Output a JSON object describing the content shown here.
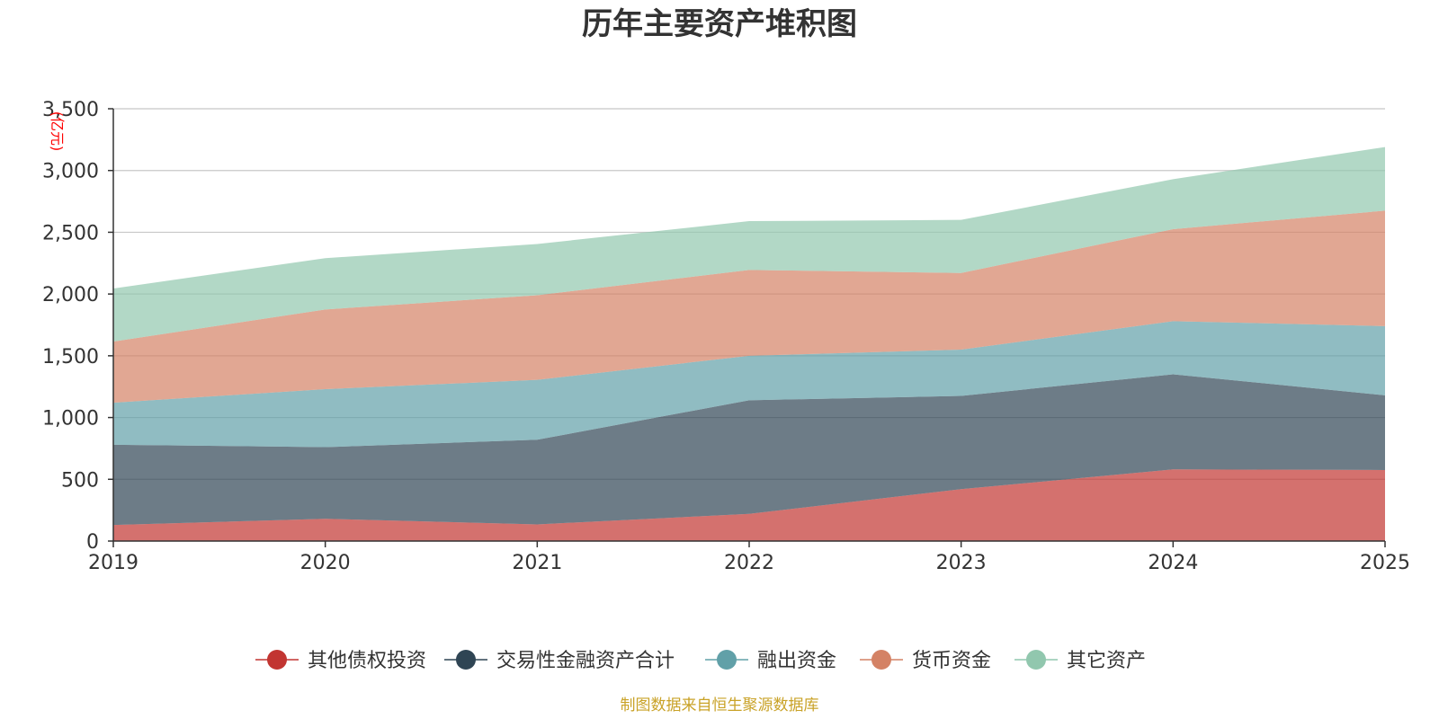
{
  "chart_data": {
    "type": "area",
    "stacked": true,
    "title": "历年主要资产堆积图",
    "unit_label": "(亿元)",
    "categories": [
      "2019",
      "2020",
      "2021",
      "2022",
      "2023",
      "2024",
      "2025"
    ],
    "ylim": [
      0,
      3500
    ],
    "yticks": [
      0,
      500,
      1000,
      1500,
      2000,
      2500,
      3000,
      3500
    ],
    "ytick_labels": [
      "0",
      "500",
      "1,000",
      "1,500",
      "2,000",
      "2,500",
      "3,000",
      "3,500"
    ],
    "grid": true,
    "legend_position": "bottom-center",
    "series": [
      {
        "name": "其他债权投资",
        "color": "#c23531",
        "values": [
          130,
          180,
          135,
          220,
          420,
          580,
          575
        ]
      },
      {
        "name": "交易性金融资产合计",
        "color": "#2f4554",
        "values": [
          650,
          580,
          685,
          920,
          755,
          770,
          605
        ]
      },
      {
        "name": "融出资金",
        "color": "#61a0a8",
        "values": [
          340,
          470,
          485,
          360,
          375,
          430,
          560
        ]
      },
      {
        "name": "货币资金",
        "color": "#d48265",
        "values": [
          495,
          645,
          685,
          695,
          620,
          745,
          935
        ]
      },
      {
        "name": "其它资产",
        "color": "#91c7ae",
        "values": [
          430,
          415,
          415,
          395,
          430,
          405,
          515
        ]
      }
    ]
  },
  "footer": {
    "source": "制图数据来自恒生聚源数据库",
    "source_color": "#c9a227"
  },
  "unit_color": "#ff0000"
}
